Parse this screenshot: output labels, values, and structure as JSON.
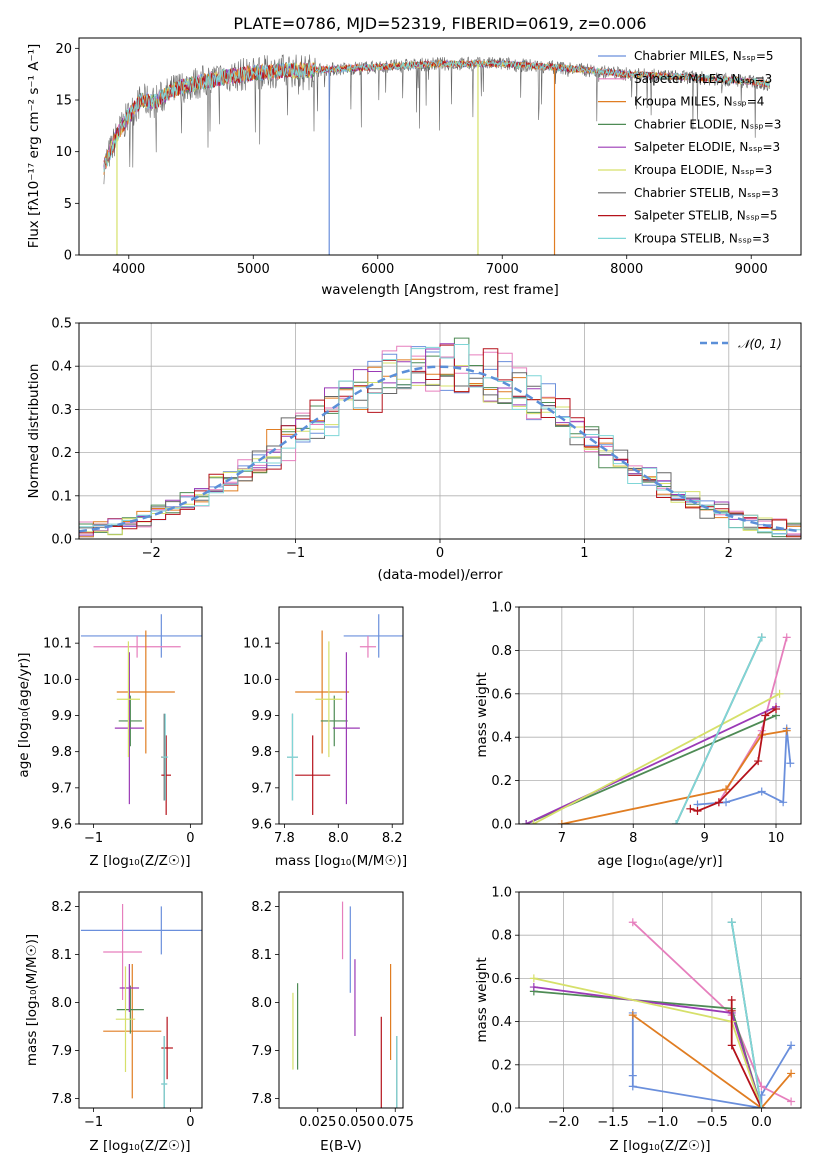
{
  "colors": {
    "series": [
      "#6a8fdc",
      "#e67fbd",
      "#e07d22",
      "#4e8b55",
      "#9b3ab6",
      "#d6e06a",
      "#676767",
      "#b5121b",
      "#7fd6d7"
    ],
    "gaussian": "#5b8fd8",
    "grid": "#b0b0b0"
  },
  "chart_data": [
    {
      "id": "spectrum",
      "type": "line",
      "title": "PLATE=0786, MJD=52319, FIBERID=0619, z=0.006",
      "xlabel": "wavelength [Angstrom, rest frame]",
      "ylabel": "Flux [fλ10⁻¹⁷ erg cm⁻² s⁻¹ A⁻¹]",
      "xlim": [
        3600,
        9400
      ],
      "ylim": [
        0,
        21
      ],
      "xticks": [
        4000,
        5000,
        6000,
        7000,
        8000,
        9000
      ],
      "yticks": [
        0,
        5,
        10,
        15,
        20
      ],
      "legend": "top-right",
      "series": [
        {
          "name": "Chabrier MILES, Nₛₛₚ=5"
        },
        {
          "name": "Salpeter MILES, Nₛₛₚ=3"
        },
        {
          "name": "Kroupa MILES, Nₛₛₚ=4"
        },
        {
          "name": "Chabrier ELODIE, Nₛₛₚ=3"
        },
        {
          "name": "Salpeter ELODIE, Nₛₛₚ=3"
        },
        {
          "name": "Kroupa ELODIE, Nₛₛₚ=3"
        },
        {
          "name": "Chabrier STELIB, Nₛₛₚ=3"
        },
        {
          "name": "Salpeter STELIB, Nₛₛₚ=5"
        },
        {
          "name": "Kroupa STELIB, Nₛₛₚ=3"
        }
      ],
      "continuum": {
        "x": [
          3800,
          3900,
          4000,
          4100,
          4200,
          4400,
          4600,
          4800,
          5000,
          5200,
          5500,
          6000,
          6500,
          7000,
          7500,
          8000,
          8500,
          9000,
          9150
        ],
        "y": [
          8.5,
          11.5,
          13.5,
          15.0,
          14.8,
          16.2,
          16.8,
          17.3,
          17.6,
          17.8,
          17.9,
          18.2,
          18.5,
          18.5,
          18.1,
          17.5,
          17.2,
          16.8,
          16.5
        ]
      },
      "dropouts": [
        {
          "x": 3905,
          "y_min": 0,
          "series": 5
        },
        {
          "x": 5610,
          "y_min": 0,
          "series": 0
        },
        {
          "x": 6805,
          "y_min": 0,
          "series": 5
        },
        {
          "x": 7420,
          "y_min": 0,
          "series": 2
        }
      ]
    },
    {
      "id": "residuals",
      "type": "line",
      "xlabel": "(data-model)/error",
      "ylabel": "Normed distribution",
      "xlim": [
        -2.5,
        2.5
      ],
      "ylim": [
        0,
        0.5
      ],
      "xticks": [
        -2,
        -1,
        0,
        1,
        2
      ],
      "yticks": [
        0.0,
        0.1,
        0.2,
        0.3,
        0.4,
        0.5
      ],
      "legend": {
        "label": "𝒩(0, 1)",
        "position": "top-right"
      },
      "bin_width": 0.1,
      "bin_start": -2.5
    },
    {
      "id": "age-vs-Z",
      "type": "scatter",
      "xlabel": "Z [log₁₀(Z/Z☉)]",
      "ylabel": "age  [log₁₀(age/yr)]",
      "xlim": [
        -1.15,
        0.12
      ],
      "ylim": [
        9.6,
        10.2
      ],
      "xticks": [
        -1,
        0
      ],
      "yticks": [
        9.6,
        9.7,
        9.8,
        9.9,
        10.0,
        10.1
      ],
      "points": [
        {
          "x": -0.3,
          "y": 10.12,
          "xerr": 0.83,
          "yerr": 0.06
        },
        {
          "x": -0.55,
          "y": 10.09,
          "xerr": 0.45,
          "yerr": 0.03
        },
        {
          "x": -0.46,
          "y": 9.965,
          "xerr": 0.3,
          "yerr": 0.17
        },
        {
          "x": -0.62,
          "y": 9.885,
          "xerr": 0.12,
          "yerr": 0.07
        },
        {
          "x": -0.63,
          "y": 9.865,
          "xerr": 0.15,
          "yerr": 0.21
        },
        {
          "x": -0.64,
          "y": 9.945,
          "xerr": 0.12,
          "yerr": 0.16
        },
        {
          "x": -0.27,
          "y": 9.785,
          "xerr": 0.03,
          "yerr": 0.12
        },
        {
          "x": -0.25,
          "y": 9.735,
          "xerr": 0.05,
          "yerr": 0.11
        },
        {
          "x": -0.26,
          "y": 9.785,
          "xerr": 0.03,
          "yerr": 0.12
        }
      ]
    },
    {
      "id": "age-vs-mass",
      "type": "scatter",
      "xlabel": "mass [log₁₀(M/M☉)]",
      "ylabel": "",
      "xlim": [
        7.78,
        8.24
      ],
      "ylim": [
        9.6,
        10.2
      ],
      "xticks": [
        7.8,
        8.0,
        8.2
      ],
      "yticks": [
        9.6,
        9.7,
        9.8,
        9.9,
        10.0,
        10.1
      ],
      "points": [
        {
          "x": 8.15,
          "y": 10.12,
          "xerr": 0.13,
          "yerr": 0.06
        },
        {
          "x": 8.11,
          "y": 10.09,
          "xerr": 0.03,
          "yerr": 0.03
        },
        {
          "x": 7.94,
          "y": 9.965,
          "xerr": 0.1,
          "yerr": 0.17
        },
        {
          "x": 7.985,
          "y": 9.885,
          "xerr": 0.05,
          "yerr": 0.07
        },
        {
          "x": 8.03,
          "y": 9.865,
          "xerr": 0.05,
          "yerr": 0.21
        },
        {
          "x": 7.965,
          "y": 9.945,
          "xerr": 0.05,
          "yerr": 0.16
        },
        {
          "x": 7.83,
          "y": 9.785,
          "xerr": 0.02,
          "yerr": 0.12
        },
        {
          "x": 7.905,
          "y": 9.735,
          "xerr": 0.065,
          "yerr": 0.11
        },
        {
          "x": 7.83,
          "y": 9.785,
          "xerr": 0.02,
          "yerr": 0.12
        }
      ]
    },
    {
      "id": "weight-vs-age",
      "type": "line",
      "xlabel": "age  [log₁₀(age/yr)]",
      "ylabel": "mass weight",
      "xlim": [
        6.4,
        10.35
      ],
      "ylim": [
        0,
        1.0
      ],
      "xticks": [
        7,
        8,
        9,
        10
      ],
      "yticks": [
        0.0,
        0.2,
        0.4,
        0.6,
        0.8,
        1.0
      ],
      "series": [
        {
          "x": [
            8.9,
            9.3,
            9.8,
            10.1,
            10.15,
            10.2
          ],
          "y": [
            0.09,
            0.1,
            0.15,
            0.1,
            0.44,
            0.28
          ]
        },
        {
          "x": [
            9.2,
            9.8,
            10.15
          ],
          "y": [
            0.1,
            0.43,
            0.86
          ]
        },
        {
          "x": [
            7.0,
            9.3,
            9.8,
            10.15
          ],
          "y": [
            0.0,
            0.16,
            0.41,
            0.43
          ]
        },
        {
          "x": [
            6.5,
            10.0
          ],
          "y": [
            0.0,
            0.5
          ]
        },
        {
          "x": [
            6.5,
            10.0
          ],
          "y": [
            0.0,
            0.54
          ]
        },
        {
          "x": [
            6.6,
            10.05
          ],
          "y": [
            0.0,
            0.6
          ]
        },
        {
          "x": [
            8.6,
            9.8
          ],
          "y": [
            0.0,
            0.86
          ]
        },
        {
          "x": [
            8.8,
            8.9,
            9.2,
            9.75,
            9.85,
            10.0
          ],
          "y": [
            0.07,
            0.06,
            0.1,
            0.29,
            0.5,
            0.53
          ]
        },
        {
          "x": [
            8.6,
            9.8
          ],
          "y": [
            0.0,
            0.86
          ]
        }
      ]
    },
    {
      "id": "mass-vs-Z",
      "type": "scatter",
      "xlabel": "Z [log₁₀(Z/Z☉)]",
      "ylabel": "mass [log₁₀(M/M☉)]",
      "xlim": [
        -1.15,
        0.12
      ],
      "ylim": [
        7.78,
        8.23
      ],
      "xticks": [
        -1,
        0
      ],
      "yticks": [
        7.8,
        7.9,
        8.0,
        8.1,
        8.2
      ],
      "points": [
        {
          "x": -0.3,
          "y": 8.15,
          "xerr": 0.83,
          "yerr": 0.05
        },
        {
          "x": -0.7,
          "y": 8.105,
          "xerr": 0.2,
          "yerr": 0.1
        },
        {
          "x": -0.6,
          "y": 7.94,
          "xerr": 0.3,
          "yerr": 0.14
        },
        {
          "x": -0.62,
          "y": 7.985,
          "xerr": 0.14,
          "yerr": 0.05
        },
        {
          "x": -0.63,
          "y": 8.03,
          "xerr": 0.1,
          "yerr": 0.05
        },
        {
          "x": -0.67,
          "y": 7.965,
          "xerr": 0.1,
          "yerr": 0.11
        },
        {
          "x": -0.27,
          "y": 7.83,
          "xerr": 0.03,
          "yerr": 0.1
        },
        {
          "x": -0.24,
          "y": 7.905,
          "xerr": 0.06,
          "yerr": 0.065
        },
        {
          "x": -0.27,
          "y": 7.83,
          "xerr": 0.03,
          "yerr": 0.1
        }
      ]
    },
    {
      "id": "mass-vs-ebv",
      "type": "scatter",
      "xlabel": "E(B-V)",
      "ylabel": "",
      "xlim": [
        0.0,
        0.08
      ],
      "ylim": [
        7.78,
        8.23
      ],
      "xticks": [
        0.025,
        0.05,
        0.075
      ],
      "xticklabels": [
        "0.025",
        "0.050",
        "0.075"
      ],
      "yticks": [
        7.8,
        7.9,
        8.0,
        8.1,
        8.2
      ],
      "points": [
        {
          "x": 0.046,
          "y": 8.11,
          "yerr": 0.09
        },
        {
          "x": 0.041,
          "y": 8.15,
          "yerr": 0.06
        },
        {
          "x": 0.072,
          "y": 7.98,
          "yerr": 0.1
        },
        {
          "x": 0.012,
          "y": 7.95,
          "yerr": 0.09
        },
        {
          "x": 0.049,
          "y": 8.01,
          "yerr": 0.08
        },
        {
          "x": 0.009,
          "y": 7.94,
          "yerr": 0.08
        },
        {
          "x": 0.076,
          "y": 7.83,
          "yerr": 0.1
        },
        {
          "x": 0.066,
          "y": 7.87,
          "yerr": 0.1
        },
        {
          "x": 0.076,
          "y": 7.83,
          "yerr": 0.1
        }
      ]
    },
    {
      "id": "weight-vs-Z",
      "type": "line",
      "xlabel": "Z [log₁₀(Z/Z☉)]",
      "ylabel": "mass weight",
      "xlim": [
        -2.45,
        0.4
      ],
      "ylim": [
        0,
        1.0
      ],
      "xticks": [
        -2.0,
        -1.5,
        -1.0,
        -0.5,
        0.0
      ],
      "yticks": [
        0.0,
        0.2,
        0.4,
        0.6,
        0.8,
        1.0
      ],
      "series": [
        {
          "x": [
            -1.3,
            -1.3,
            -1.3,
            0.0,
            0.0,
            0.3
          ],
          "y": [
            0.44,
            0.15,
            0.1,
            0.0,
            0.06,
            0.29
          ]
        },
        {
          "x": [
            -1.3,
            -0.3,
            0.0,
            0.3
          ],
          "y": [
            0.86,
            0.43,
            0.1,
            0.03
          ]
        },
        {
          "x": [
            -1.3,
            0.0,
            0.3
          ],
          "y": [
            0.43,
            0.0,
            0.16
          ]
        },
        {
          "x": [
            -2.3,
            -0.3,
            0.0
          ],
          "y": [
            0.54,
            0.46,
            0.0
          ]
        },
        {
          "x": [
            -2.3,
            -0.3,
            0.0
          ],
          "y": [
            0.56,
            0.44,
            0.0
          ]
        },
        {
          "x": [
            -2.3,
            -0.3,
            0.0
          ],
          "y": [
            0.6,
            0.4,
            0.0
          ]
        },
        {
          "x": [
            -0.3,
            0.0
          ],
          "y": [
            0.86,
            0.0
          ]
        },
        {
          "x": [
            -0.3,
            -0.3,
            -0.3,
            0.0
          ],
          "y": [
            0.5,
            0.45,
            0.29,
            0.0
          ]
        },
        {
          "x": [
            -0.3,
            0.0
          ],
          "y": [
            0.86,
            0.0
          ]
        }
      ]
    }
  ]
}
